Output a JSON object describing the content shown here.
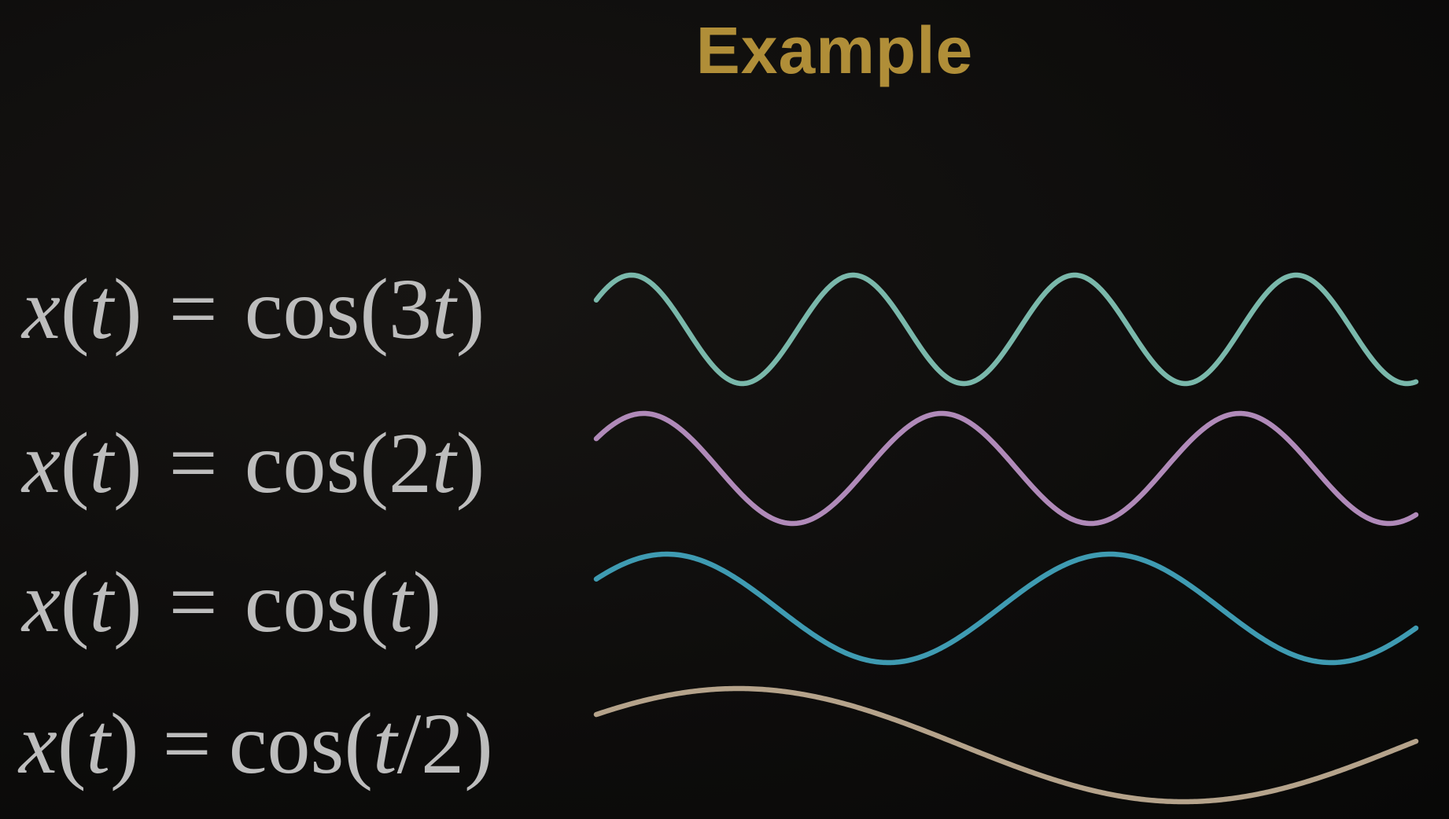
{
  "title": "Example",
  "title_color": "#b08e38",
  "equations": [
    {
      "lhs_var": "x",
      "lhs_paren_open": "(",
      "lhs_arg": "t",
      "lhs_paren_close": ")",
      "equals": "=",
      "func": "cos",
      "open": "(",
      "coef": "3",
      "arg": "t",
      "suffix": "",
      "close": ")"
    },
    {
      "lhs_var": "x",
      "lhs_paren_open": "(",
      "lhs_arg": "t",
      "lhs_paren_close": ")",
      "equals": "=",
      "func": "cos",
      "open": "(",
      "coef": "2",
      "arg": "t",
      "suffix": "",
      "close": ")"
    },
    {
      "lhs_var": "x",
      "lhs_paren_open": "(",
      "lhs_arg": "t",
      "lhs_paren_close": ")",
      "equals": "=",
      "func": "cos",
      "open": "(",
      "coef": "",
      "arg": "t",
      "suffix": "",
      "close": ")"
    },
    {
      "lhs_var": "x",
      "lhs_paren_open": "(",
      "lhs_arg": "t",
      "lhs_paren_close": ")",
      "equals": "=",
      "func": "cos",
      "open": "(",
      "coef": "",
      "arg": "t",
      "suffix": "/2",
      "close": ")"
    }
  ],
  "waves": [
    {
      "name": "cos-3t-wave",
      "frequency": 3,
      "cycles": 3.7,
      "color": "#7ab8ab"
    },
    {
      "name": "cos-2t-wave",
      "frequency": 2,
      "cycles": 2.75,
      "color": "#b08ab9"
    },
    {
      "name": "cos-t-wave",
      "frequency": 1,
      "cycles": 1.85,
      "color": "#3f9bb2"
    },
    {
      "name": "cos-t-over-2-wave",
      "frequency": 0.5,
      "cycles": 0.92,
      "color": "#b5a38b"
    }
  ]
}
